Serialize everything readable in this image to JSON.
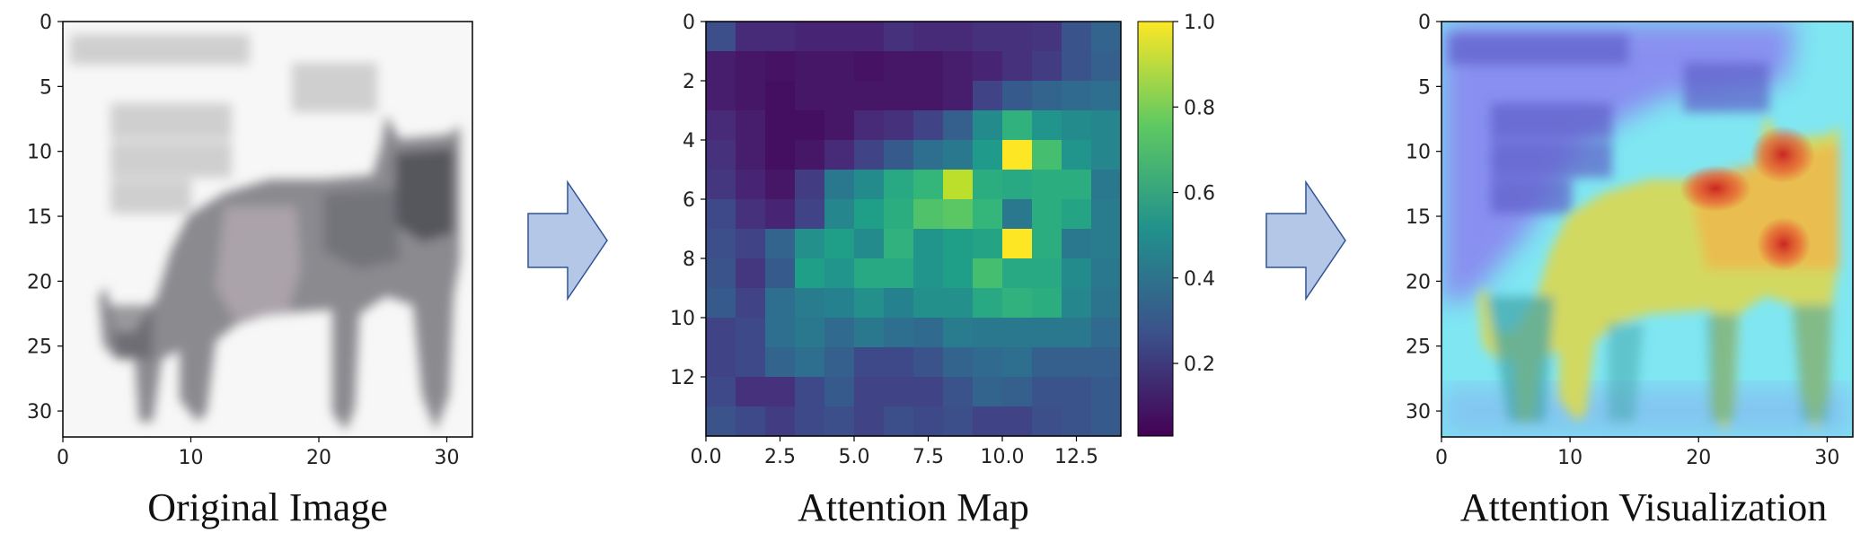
{
  "panels": [
    {
      "id": "original",
      "caption": "Original Image",
      "x_ticks": [
        "0",
        "10",
        "20",
        "30"
      ],
      "y_ticks": [
        "0",
        "5",
        "10",
        "15",
        "20",
        "25",
        "30"
      ]
    },
    {
      "id": "attention-map",
      "caption": "Attention Map",
      "x_ticks": [
        "0.0",
        "2.5",
        "5.0",
        "7.5",
        "10.0",
        "12.5"
      ],
      "y_ticks": [
        "0",
        "2",
        "4",
        "6",
        "8",
        "10",
        "12"
      ],
      "colorbar_ticks": [
        "1.0",
        "0.8",
        "0.6",
        "0.4",
        "0.2"
      ]
    },
    {
      "id": "attention-visualization",
      "caption": "Attention Visualization",
      "x_ticks": [
        "0",
        "10",
        "20",
        "30"
      ],
      "y_ticks": [
        "0",
        "5",
        "10",
        "15",
        "20",
        "25",
        "30"
      ]
    }
  ],
  "colors": {
    "arrow_fill": "#b4c7e7",
    "arrow_stroke": "#2f5597",
    "viridis_low": "#440154",
    "viridis_mid": "#21918c",
    "viridis_high": "#fde725"
  },
  "attention_grid": [
    [
      0.24,
      0.12,
      0.12,
      0.1,
      0.1,
      0.1,
      0.14,
      0.12,
      0.12,
      0.14,
      0.14,
      0.15,
      0.26,
      0.32
    ],
    [
      0.08,
      0.06,
      0.05,
      0.06,
      0.06,
      0.05,
      0.06,
      0.06,
      0.08,
      0.1,
      0.14,
      0.18,
      0.26,
      0.3
    ],
    [
      0.08,
      0.06,
      0.04,
      0.06,
      0.06,
      0.06,
      0.06,
      0.06,
      0.08,
      0.2,
      0.28,
      0.32,
      0.34,
      0.36
    ],
    [
      0.12,
      0.08,
      0.04,
      0.04,
      0.06,
      0.12,
      0.14,
      0.2,
      0.3,
      0.48,
      0.64,
      0.52,
      0.48,
      0.46
    ],
    [
      0.14,
      0.08,
      0.04,
      0.06,
      0.12,
      0.2,
      0.28,
      0.36,
      0.4,
      0.54,
      1.0,
      0.7,
      0.52,
      0.46
    ],
    [
      0.16,
      0.1,
      0.06,
      0.18,
      0.4,
      0.48,
      0.6,
      0.66,
      0.9,
      0.62,
      0.6,
      0.62,
      0.62,
      0.4
    ],
    [
      0.22,
      0.14,
      0.1,
      0.2,
      0.46,
      0.56,
      0.62,
      0.72,
      0.74,
      0.66,
      0.4,
      0.62,
      0.58,
      0.42
    ],
    [
      0.24,
      0.2,
      0.32,
      0.5,
      0.56,
      0.48,
      0.64,
      0.52,
      0.56,
      0.58,
      1.0,
      0.62,
      0.4,
      0.42
    ],
    [
      0.26,
      0.16,
      0.28,
      0.56,
      0.52,
      0.6,
      0.6,
      0.52,
      0.56,
      0.7,
      0.6,
      0.6,
      0.48,
      0.4
    ],
    [
      0.28,
      0.2,
      0.36,
      0.42,
      0.44,
      0.5,
      0.44,
      0.5,
      0.5,
      0.6,
      0.64,
      0.62,
      0.46,
      0.38
    ],
    [
      0.2,
      0.22,
      0.36,
      0.4,
      0.34,
      0.4,
      0.36,
      0.34,
      0.42,
      0.4,
      0.4,
      0.4,
      0.4,
      0.34
    ],
    [
      0.2,
      0.22,
      0.32,
      0.36,
      0.3,
      0.22,
      0.22,
      0.26,
      0.32,
      0.34,
      0.36,
      0.3,
      0.3,
      0.3
    ],
    [
      0.22,
      0.14,
      0.14,
      0.22,
      0.28,
      0.2,
      0.2,
      0.2,
      0.26,
      0.32,
      0.3,
      0.26,
      0.26,
      0.28
    ],
    [
      0.26,
      0.22,
      0.18,
      0.22,
      0.24,
      0.2,
      0.24,
      0.22,
      0.24,
      0.2,
      0.2,
      0.24,
      0.26,
      0.28
    ]
  ]
}
